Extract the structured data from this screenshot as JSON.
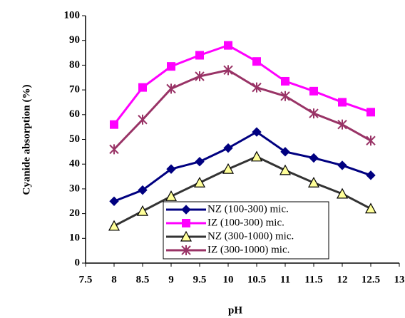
{
  "chart_data": {
    "type": "line",
    "x_label": "pH",
    "y_label": "Cyanide absorption (%)",
    "x": [
      8,
      8.5,
      9,
      9.5,
      10,
      10.5,
      11,
      11.5,
      12,
      12.5
    ],
    "series": [
      {
        "name": "NZ (100-300) mic.",
        "color": "#000080",
        "marker": "diamond",
        "marker_color": "#000080",
        "values": [
          25,
          29.5,
          38,
          41,
          46.5,
          53,
          45,
          42.5,
          39.5,
          35.5
        ]
      },
      {
        "name": "IZ (100-300) mic.",
        "color": "#ff00ff",
        "marker": "square",
        "marker_color": "#ff00ff",
        "values": [
          56,
          71,
          79.5,
          84,
          88,
          81.5,
          73.5,
          69.5,
          65,
          61
        ]
      },
      {
        "name": "NZ (300-1000) mic.",
        "color": "#333333",
        "marker": "triangle",
        "marker_color": "#ffff99",
        "values": [
          15,
          21,
          27,
          32.5,
          38,
          43,
          37.5,
          32.5,
          28,
          22
        ]
      },
      {
        "name": "IZ (300-1000) mic.",
        "color": "#993366",
        "marker": "star",
        "marker_color": "#993366",
        "values": [
          46,
          58,
          70.5,
          75.5,
          78,
          71,
          67.5,
          60.5,
          56,
          49.5
        ]
      }
    ],
    "xlim": [
      7.5,
      13
    ],
    "xticks": [
      7.5,
      8,
      8.5,
      9,
      9.5,
      10,
      10.5,
      11,
      11.5,
      12,
      12.5,
      13
    ],
    "ylim": [
      0,
      100
    ],
    "yticks": [
      0,
      10,
      20,
      30,
      40,
      50,
      60,
      70,
      80,
      90,
      100
    ],
    "grid": false,
    "legend": "lower center"
  }
}
